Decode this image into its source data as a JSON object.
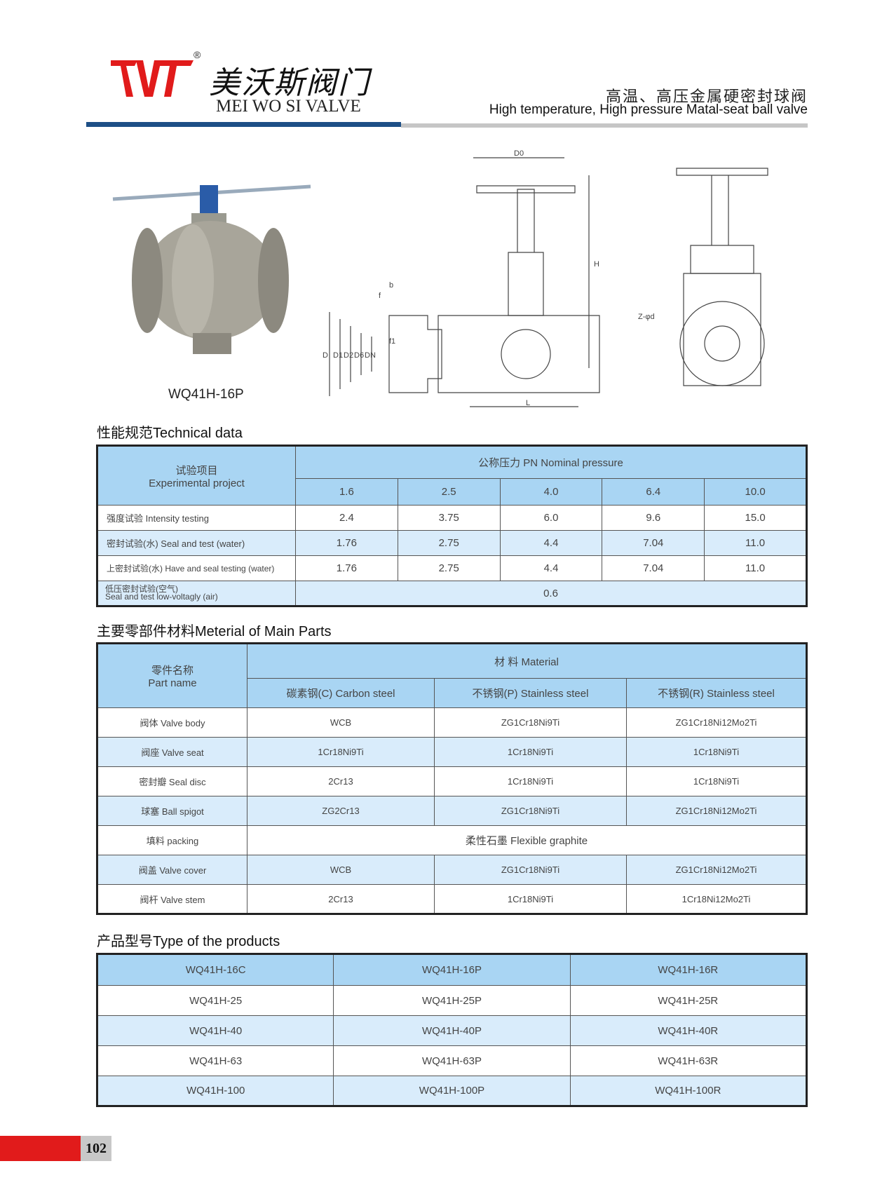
{
  "header": {
    "brand_cn": "美沃斯阀门",
    "brand_en": "MEI WO SI VALVE",
    "registered": "®",
    "title_cn": "高温、高压金属硬密封球阀",
    "title_en": "High temperature, High pressure Matal-seat ball valve",
    "colors": {
      "logo": "#e11b1b",
      "blue_bar": "#1d4f86",
      "gray_bar": "#c6c6c6"
    }
  },
  "figure": {
    "caption": "WQ41H-16P",
    "labels": [
      "D0",
      "H",
      "L",
      "b",
      "f",
      "D",
      "D1",
      "D2",
      "D6",
      "DN",
      "f1",
      "Z-φd"
    ]
  },
  "technical": {
    "heading": "性能规范Technical data",
    "project_cn": "试验项目",
    "project_en": "Experimental project",
    "pressure_header": "公称压力  PN    Nominal pressure",
    "pn": [
      "1.6",
      "2.5",
      "4.0",
      "6.4",
      "10.0"
    ],
    "rows": [
      {
        "label": "强度试验 Intensity testing",
        "values": [
          "2.4",
          "3.75",
          "6.0",
          "9.6",
          "15.0"
        ]
      },
      {
        "label": "密封试验(水) Seal and test (water)",
        "values": [
          "1.76",
          "2.75",
          "4.4",
          "7.04",
          "11.0"
        ]
      },
      {
        "label": "上密封试验(水) Have and seal testing (water)",
        "values": [
          "1.76",
          "2.75",
          "4.4",
          "7.04",
          "11.0"
        ]
      }
    ],
    "air_label_cn": "低压密封试验(空气)",
    "air_label_en": "Seal and test low-voltagly (air)",
    "air_value": "0.6"
  },
  "materials": {
    "heading": "主要零部件材料Meterial of Main Parts",
    "part_cn": "零件名称",
    "part_en": "Part name",
    "material_header": "材    料      Material",
    "columns": [
      "碳素钢(C)  Carbon steel",
      "不锈钢(P)  Stainless steel",
      "不锈钢(R)  Stainless steel"
    ],
    "rows": [
      {
        "part": "阀体  Valve body",
        "values": [
          "WCB",
          "ZG1Cr18Ni9Ti",
          "ZG1Cr18Ni12Mo2Ti"
        ]
      },
      {
        "part": "阀座  Valve seat",
        "values": [
          "1Cr18Ni9Ti",
          "1Cr18Ni9Ti",
          "1Cr18Ni9Ti"
        ]
      },
      {
        "part": "密封瓣 Seal disc",
        "values": [
          "2Cr13",
          "1Cr18Ni9Ti",
          "1Cr18Ni9Ti"
        ]
      },
      {
        "part": "球塞 Ball spigot",
        "values": [
          "ZG2Cr13",
          "ZG1Cr18Ni9Ti",
          "ZG1Cr18Ni12Mo2Ti"
        ]
      },
      {
        "part": "填料 packing",
        "merged": "柔性石墨    Flexible graphite"
      },
      {
        "part": "阀盖 Valve cover",
        "values": [
          "WCB",
          "ZG1Cr18Ni9Ti",
          "ZG1Cr18Ni12Mo2Ti"
        ]
      },
      {
        "part": "阀杆 Valve stem",
        "values": [
          "2Cr13",
          "1Cr18Ni9Ti",
          "1Cr18Ni12Mo2Ti"
        ]
      }
    ]
  },
  "products": {
    "heading": "产品型号Type  of  the  products",
    "rows": [
      [
        "WQ41H-16C",
        "WQ41H-16P",
        "WQ41H-16R"
      ],
      [
        "WQ41H-25",
        "WQ41H-25P",
        "WQ41H-25R"
      ],
      [
        "WQ41H-40",
        "WQ41H-40P",
        "WQ41H-40R"
      ],
      [
        "WQ41H-63",
        "WQ41H-63P",
        "WQ41H-63R"
      ],
      [
        "WQ41H-100",
        "WQ41H-100P",
        "WQ41H-100R"
      ]
    ]
  },
  "footer": {
    "page": "102",
    "color": "#e11b1b"
  }
}
